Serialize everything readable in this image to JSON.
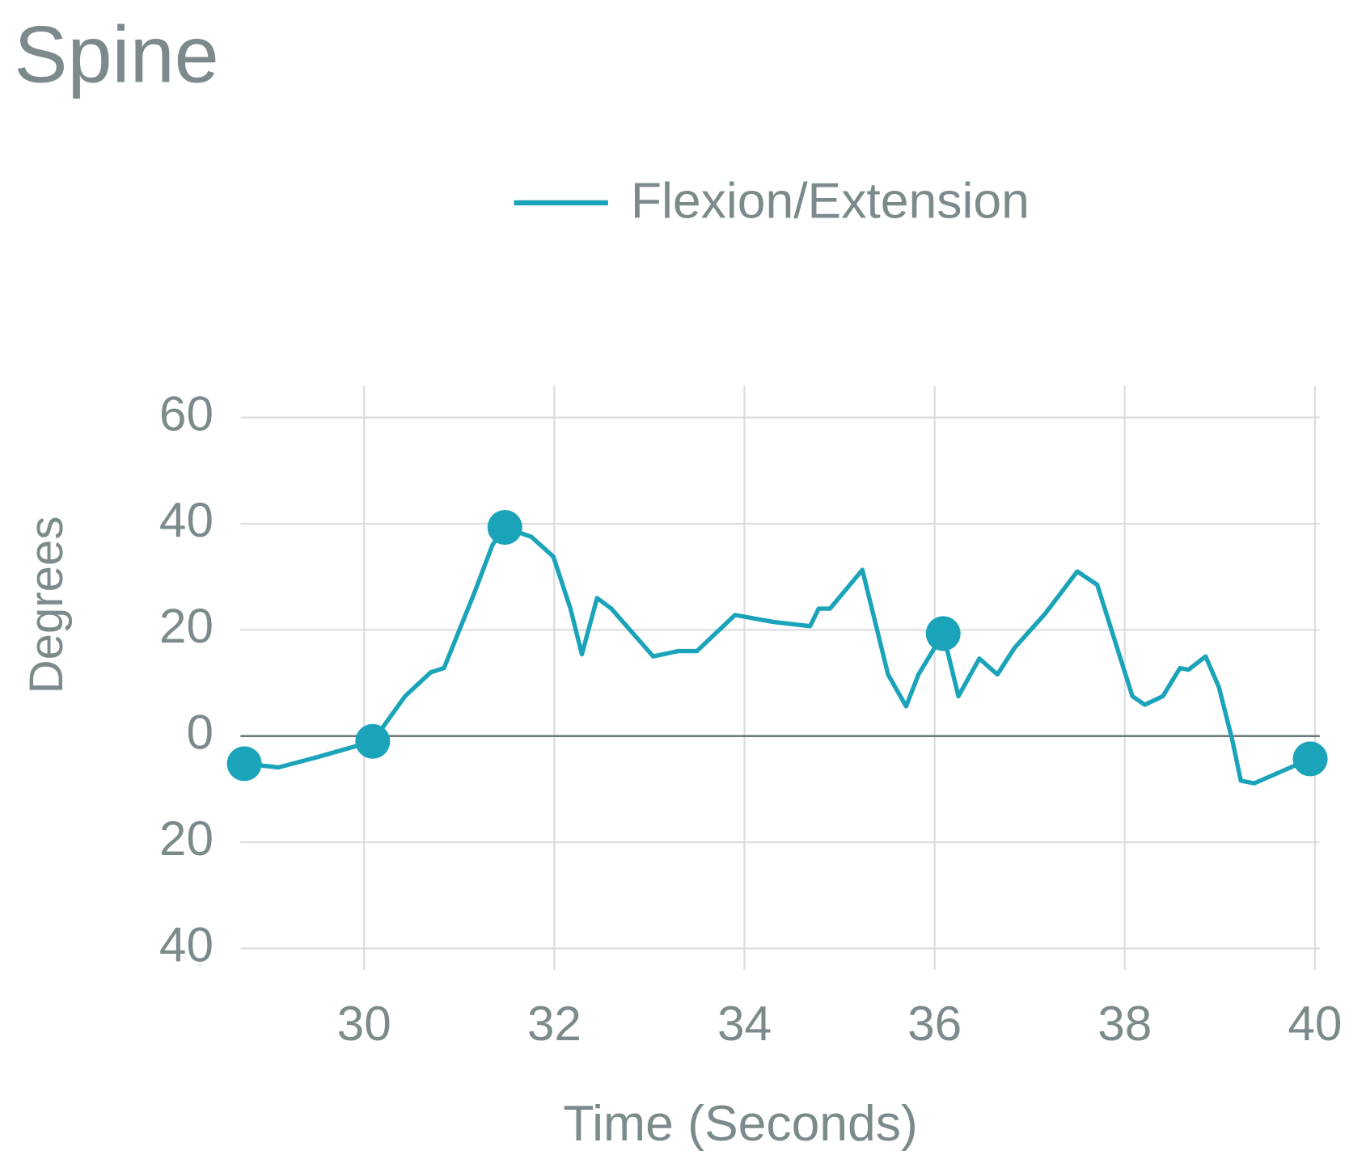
{
  "chart_data": {
    "type": "line",
    "title": "Spine",
    "xlabel": "Time (Seconds)",
    "ylabel": "Degrees",
    "xlim": [
      28.7,
      40.05
    ],
    "ylim": [
      -44,
      66
    ],
    "xticks": [
      30,
      32,
      34,
      36,
      38,
      40
    ],
    "yticks": [
      60,
      40,
      20,
      0,
      {
        "value": -20,
        "label": "20"
      },
      {
        "value": -40,
        "label": "40"
      }
    ],
    "grid": true,
    "legend": "top",
    "series": [
      {
        "name": "Flexion/Extension",
        "color": "#1ba3b9",
        "x": [
          28.74,
          29.1,
          29.5,
          30.09,
          30.43,
          30.7,
          30.84,
          31.16,
          31.35,
          31.48,
          31.76,
          31.99,
          32.17,
          32.29,
          32.45,
          32.6,
          33.04,
          33.3,
          33.5,
          33.9,
          34.3,
          34.69,
          34.78,
          34.9,
          35.24,
          35.51,
          35.7,
          35.83,
          36.09,
          36.25,
          36.47,
          36.66,
          36.84,
          37.16,
          37.5,
          37.71,
          38.08,
          38.21,
          38.4,
          38.58,
          38.67,
          38.85,
          38.99,
          39.13,
          39.22,
          39.36,
          39.95
        ],
        "values": [
          -5.2,
          -5.9,
          -4,
          -1,
          7.5,
          12,
          12.8,
          27,
          36,
          39.3,
          37.5,
          33.8,
          24,
          15.4,
          26,
          24,
          15,
          16,
          16,
          22.8,
          21.5,
          20.7,
          24,
          24,
          31.3,
          11.6,
          5.6,
          11.6,
          19.3,
          7.5,
          14.6,
          11.6,
          16.6,
          23,
          31,
          28.5,
          7.5,
          5.9,
          7.5,
          12.8,
          12.5,
          15,
          9.2,
          -0.7,
          -8.4,
          -8.9,
          -4.3
        ]
      }
    ],
    "highlight_points": {
      "x": [
        28.74,
        30.09,
        31.48,
        36.09,
        39.95
      ],
      "values": [
        -5.2,
        -1,
        39.3,
        19.3,
        -4.3
      ]
    }
  }
}
